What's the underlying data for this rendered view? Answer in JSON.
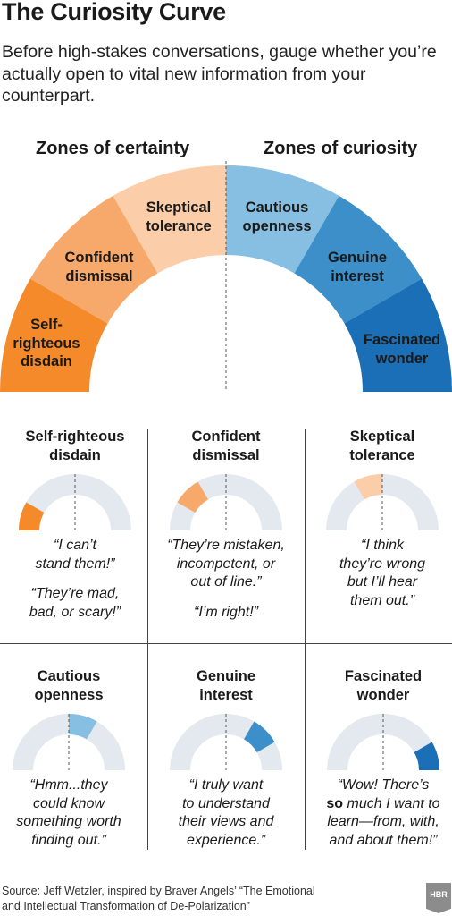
{
  "title": "The Curiosity Curve",
  "subtitle": "Before high-stakes conversations, gauge whether you’re actually open to vital new information from your counterpart.",
  "zones": {
    "certainty": "Zones of certainty",
    "curiosity": "Zones of curiosity"
  },
  "colors": {
    "self_righteous_disdain": "#f58a2a",
    "confident_dismissal": "#f7a96b",
    "skeptical_tolerance": "#fbcda8",
    "cautious_openness": "#86bfe2",
    "genuine_interest": "#3d8fc9",
    "fascinated_wonder": "#1a6fb6",
    "track": "#e4e8ef"
  },
  "segments": [
    {
      "line1": "Self-",
      "line2": "righteous",
      "line3": "disdain"
    },
    {
      "line1": "Confident",
      "line2": "dismissal"
    },
    {
      "line1": "Skeptical",
      "line2": "tolerance"
    },
    {
      "line1": "Cautious",
      "line2": "openness"
    },
    {
      "line1": "Genuine",
      "line2": "interest"
    },
    {
      "line1": "Fascinated",
      "line2": "wonder"
    }
  ],
  "panels": [
    {
      "title1": "Self-righteous",
      "title2": "disdain",
      "q1": [
        "“I can’t",
        "stand them!”"
      ],
      "q2": [
        "“They’re mad,",
        "bad, or scary!”"
      ]
    },
    {
      "title1": "Confident",
      "title2": "dismissal",
      "q1": [
        "“They’re mistaken,",
        "incompetent, or",
        "out of line.”"
      ],
      "q2": [
        "“I’m right!”"
      ]
    },
    {
      "title1": "Skeptical",
      "title2": "tolerance",
      "q1": [
        "“I think",
        "they’re wrong",
        "but I’ll hear",
        "them out.”"
      ]
    },
    {
      "title1": "Cautious",
      "title2": "openness",
      "q1": [
        "“Hmm...they",
        "could know",
        "something worth",
        "finding out.”"
      ]
    },
    {
      "title1": "Genuine",
      "title2": "interest",
      "q1": [
        "“I truly want",
        "to understand",
        "their views and",
        "experience.”"
      ]
    },
    {
      "title1": "Fascinated",
      "title2": "wonder",
      "q1_pre": "“Wow! There’s",
      "q1_bold": "so",
      "q1_post": " much I want to",
      "q1_rest": [
        "learn—from, with,",
        "and about them!”"
      ]
    }
  ],
  "source": {
    "line1": "Source: Jeff Wetzler, inspired by Braver Angels’ “The Emotional",
    "line2": "and Intellectual Transformation of De-Polarization”"
  },
  "logo": "HBR"
}
